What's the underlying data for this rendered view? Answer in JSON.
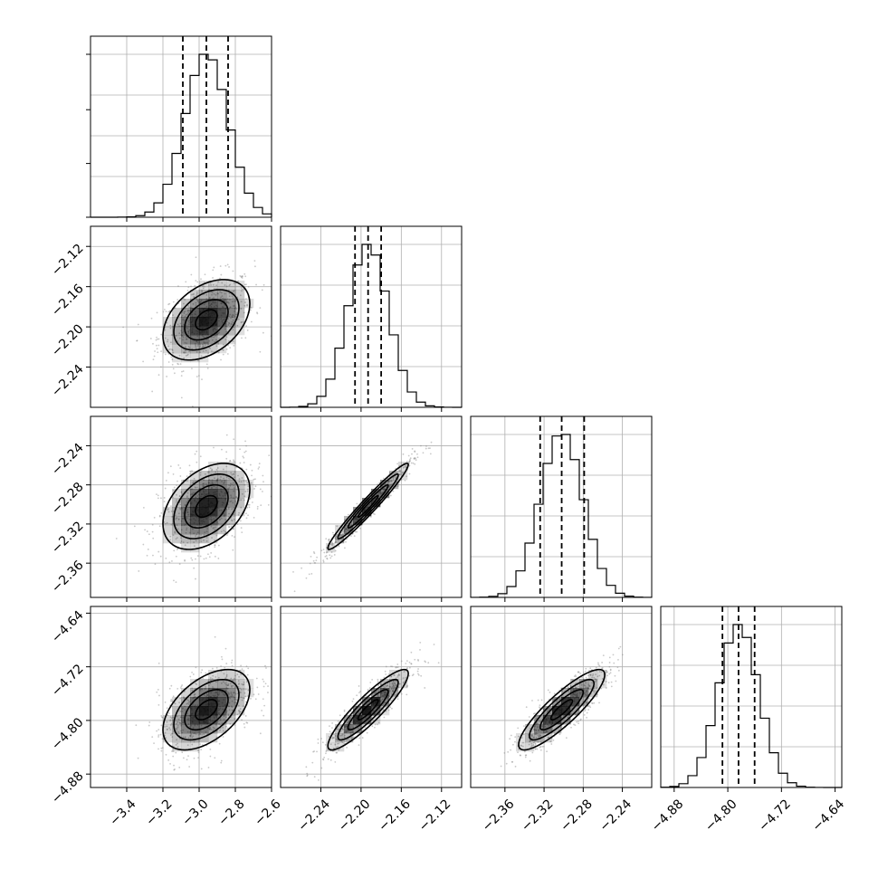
{
  "chart_data": {
    "type": "corner",
    "parameters": [
      {
        "range": [
          -3.6,
          -2.6
        ],
        "xticks": [
          -3.4,
          -3.2,
          -3.0,
          -2.8,
          -2.6
        ],
        "xtick_labels": [
          "−3.4",
          "−3.2",
          "−3.0",
          "−2.8",
          "−2.6"
        ],
        "yticks": [],
        "ytick_labels": [],
        "mean": -2.96,
        "sd": 0.12,
        "quantiles": [
          -3.09,
          -2.96,
          -2.84
        ]
      },
      {
        "range": [
          -2.28,
          -2.1
        ],
        "xticks": [
          -2.24,
          -2.2,
          -2.16,
          -2.12
        ],
        "xtick_labels": [
          "−2.24",
          "−2.20",
          "−2.16",
          "−2.12"
        ],
        "yticks": [
          -2.24,
          -2.2,
          -2.16,
          -2.12
        ],
        "ytick_labels": [
          "−2.24",
          "−2.20",
          "−2.16",
          "−2.12"
        ],
        "mean": -2.193,
        "sd": 0.02,
        "quantiles": [
          -2.206,
          -2.193,
          -2.18
        ]
      },
      {
        "range": [
          -2.395,
          -2.21
        ],
        "xticks": [
          -2.36,
          -2.32,
          -2.28,
          -2.24
        ],
        "xtick_labels": [
          "−2.36",
          "−2.32",
          "−2.28",
          "−2.24"
        ],
        "yticks": [
          -2.36,
          -2.32,
          -2.28,
          -2.24
        ],
        "ytick_labels": [
          "−2.36",
          "−2.32",
          "−2.28",
          "−2.24"
        ],
        "mean": -2.302,
        "sd": 0.022,
        "quantiles": [
          -2.324,
          -2.302,
          -2.279
        ]
      },
      {
        "range": [
          -4.9,
          -4.63
        ],
        "xticks": [
          -4.88,
          -4.8,
          -4.72,
          -4.64
        ],
        "xtick_labels": [
          "−4.88",
          "−4.80",
          "−4.72",
          "−4.64"
        ],
        "yticks": [
          -4.88,
          -4.8,
          -4.72,
          -4.64
        ],
        "ytick_labels": [
          "−4.88",
          "−4.80",
          "−4.72",
          "−4.64"
        ],
        "mean": -4.784,
        "sd": 0.03,
        "quantiles": [
          -4.808,
          -4.784,
          -4.76
        ]
      }
    ],
    "correlations": [
      [
        1.0,
        0.4,
        0.4,
        0.5
      ],
      [
        0.4,
        1.0,
        0.97,
        0.9
      ],
      [
        0.4,
        0.97,
        1.0,
        0.87
      ],
      [
        0.5,
        0.9,
        0.87,
        1.0
      ]
    ],
    "histogram_bins": 20,
    "contour_levels_sigma": [
      0.5,
      1.0,
      1.5,
      2.0
    ],
    "grid": true,
    "colors": {
      "line": "#000000",
      "scatter": "#888888",
      "density": "#000000",
      "grid": "#b0b0b0"
    }
  }
}
